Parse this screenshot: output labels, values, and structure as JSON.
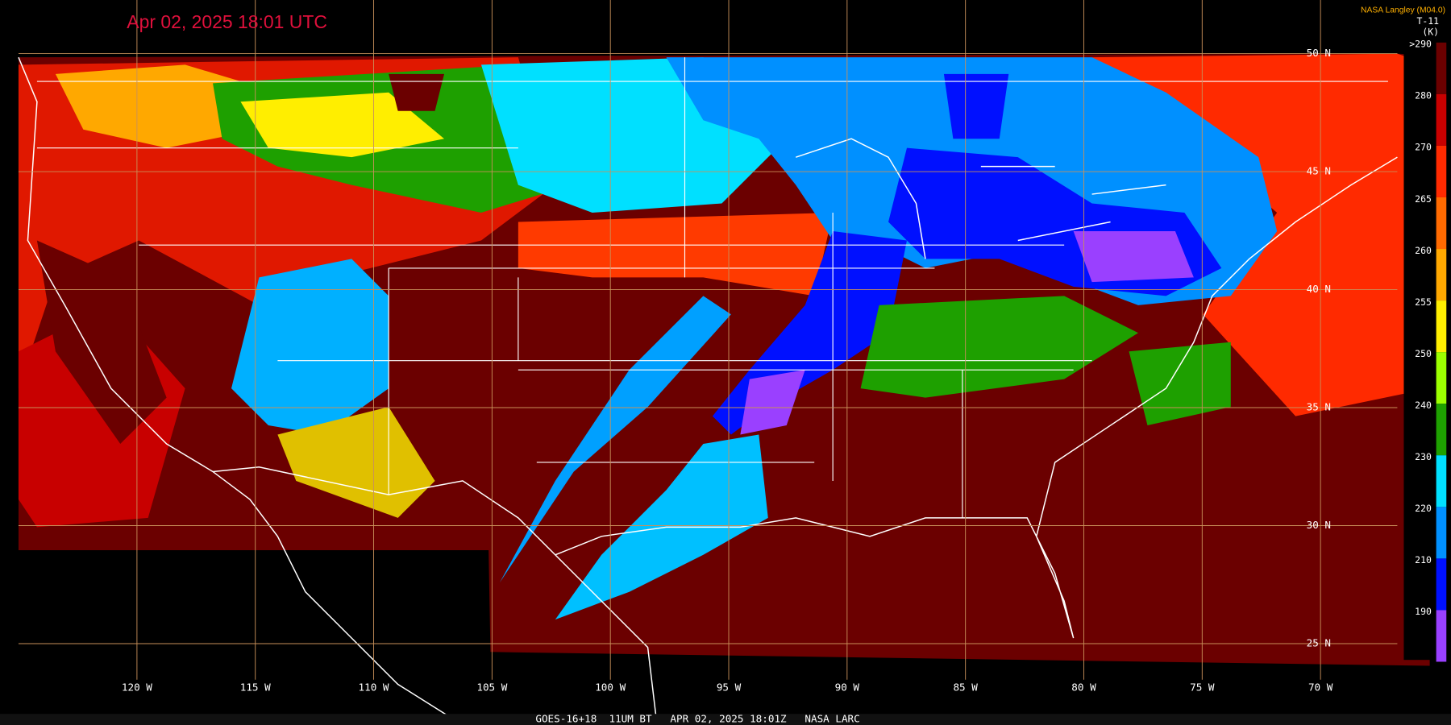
{
  "header": {
    "title": "Apr 02, 2025 18:01 UTC",
    "source": "NASA Langley (M04.0)"
  },
  "colorbar": {
    "title": "T-11",
    "unit": "(K)",
    "entries": [
      {
        "label": ">290",
        "color": "#6b0000"
      },
      {
        "label": "280",
        "color": "#c80000"
      },
      {
        "label": "270",
        "color": "#ff2a00"
      },
      {
        "label": "265",
        "color": "#ff6a00"
      },
      {
        "label": "260",
        "color": "#ffa800"
      },
      {
        "label": "255",
        "color": "#ffee00"
      },
      {
        "label": "250",
        "color": "#9cff00"
      },
      {
        "label": "240",
        "color": "#1ea000"
      },
      {
        "label": "230",
        "color": "#00e0ff"
      },
      {
        "label": "220",
        "color": "#0090ff"
      },
      {
        "label": "210",
        "color": "#0010ff"
      },
      {
        "label": "190",
        "color": "#9a40ff"
      }
    ]
  },
  "latitude_labels": [
    "50 N",
    "45 N",
    "40 N",
    "35 N",
    "30 N",
    "25 N"
  ],
  "longitude_labels": [
    "120 W",
    "115 W",
    "110 W",
    "105 W",
    "100 W",
    "95 W",
    "90 W",
    "85 W",
    "80 W",
    "75 W",
    "70 W"
  ],
  "footer": "GOES-16+18  11UM BT   APR 02, 2025 18:01Z   NASA LARC"
}
